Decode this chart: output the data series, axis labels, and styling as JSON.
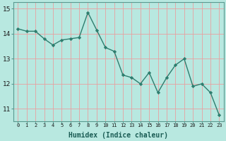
{
  "x": [
    0,
    1,
    2,
    3,
    4,
    5,
    6,
    7,
    8,
    9,
    10,
    11,
    12,
    13,
    14,
    15,
    16,
    17,
    18,
    19,
    20,
    21,
    22,
    23
  ],
  "y": [
    14.2,
    14.1,
    14.1,
    13.8,
    13.55,
    13.75,
    13.8,
    13.85,
    14.85,
    14.15,
    13.45,
    13.3,
    12.35,
    12.25,
    12.0,
    12.45,
    11.65,
    12.25,
    12.75,
    13.0,
    11.9,
    12.0,
    11.65,
    10.75
  ],
  "line_color": "#2e7d6e",
  "marker": "D",
  "marker_size": 2.2,
  "bg_color": "#b8e8e0",
  "plot_bg_color": "#b8e8e0",
  "grid_color": "#e8a0a0",
  "xlabel": "Humidex (Indice chaleur)",
  "ylim": [
    10.5,
    15.25
  ],
  "xlim": [
    -0.5,
    23.5
  ],
  "yticks": [
    11,
    12,
    13,
    14,
    15
  ],
  "xtick_labels": [
    "0",
    "1",
    "2",
    "3",
    "4",
    "5",
    "6",
    "7",
    "8",
    "9",
    "10",
    "11",
    "12",
    "13",
    "14",
    "15",
    "16",
    "17",
    "18",
    "19",
    "20",
    "21",
    "22",
    "23"
  ]
}
